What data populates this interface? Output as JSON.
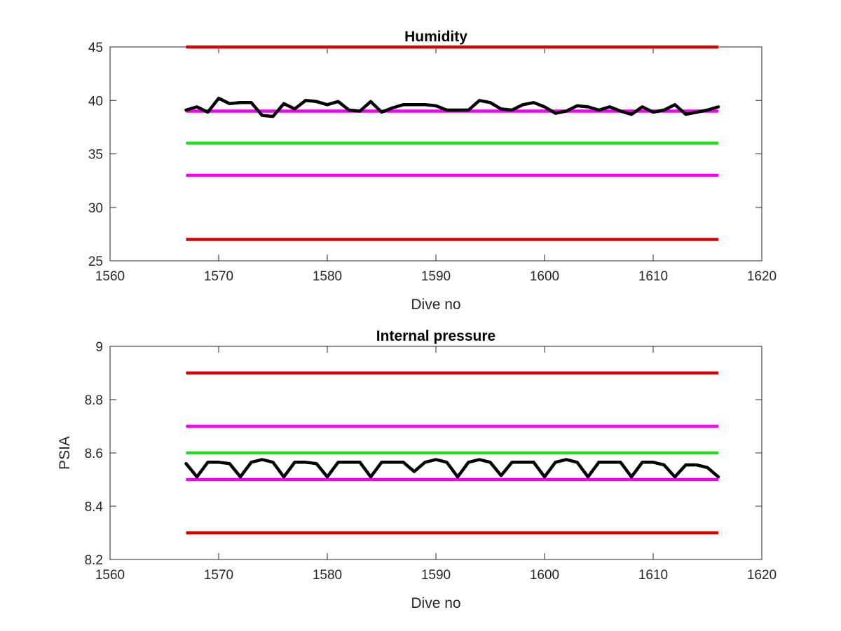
{
  "colors": {
    "red": "#d40000",
    "magenta": "#ee00ee",
    "green": "#22dd22",
    "data": "#000000"
  },
  "chart_data": [
    {
      "type": "line",
      "title": "Humidity",
      "xlabel": "Dive no",
      "ylabel": "",
      "xlim": [
        1560,
        1620
      ],
      "ylim": [
        25,
        45
      ],
      "xticks": [
        1560,
        1570,
        1580,
        1590,
        1600,
        1610,
        1620
      ],
      "yticks": [
        25,
        30,
        35,
        40,
        45
      ],
      "grid": false,
      "reference_lines": [
        {
          "y": 45,
          "x": [
            1567,
            1616
          ],
          "color": "red"
        },
        {
          "y": 39,
          "x": [
            1567,
            1616
          ],
          "color": "magenta"
        },
        {
          "y": 36,
          "x": [
            1567,
            1616
          ],
          "color": "green"
        },
        {
          "y": 33,
          "x": [
            1567,
            1616
          ],
          "color": "magenta"
        },
        {
          "y": 27,
          "x": [
            1567,
            1616
          ],
          "color": "red"
        }
      ],
      "series": [
        {
          "x": [
            1567,
            1568,
            1569,
            1570,
            1571,
            1572,
            1573,
            1574,
            1575,
            1576,
            1577,
            1578,
            1579,
            1580,
            1581,
            1582,
            1583,
            1584,
            1585,
            1586,
            1587,
            1588,
            1589,
            1590,
            1591,
            1592,
            1593,
            1594,
            1595,
            1596,
            1597,
            1598,
            1599,
            1600,
            1601,
            1602,
            1603,
            1604,
            1605,
            1606,
            1607,
            1608,
            1609,
            1610,
            1611,
            1612,
            1613,
            1614,
            1615,
            1616
          ],
          "y": [
            39.1,
            39.4,
            38.9,
            40.2,
            39.7,
            39.8,
            39.8,
            38.6,
            38.5,
            39.7,
            39.2,
            40.0,
            39.9,
            39.6,
            39.9,
            39.1,
            39.0,
            39.9,
            38.9,
            39.3,
            39.6,
            39.6,
            39.6,
            39.5,
            39.1,
            39.1,
            39.1,
            40.0,
            39.8,
            39.2,
            39.1,
            39.6,
            39.8,
            39.4,
            38.8,
            39.0,
            39.5,
            39.4,
            39.1,
            39.4,
            39.0,
            38.7,
            39.4,
            38.9,
            39.1,
            39.6,
            38.7,
            38.9,
            39.1,
            39.4
          ],
          "color": "data"
        }
      ]
    },
    {
      "type": "line",
      "title": "Internal pressure",
      "xlabel": "Dive no",
      "ylabel": "PSIA",
      "xlim": [
        1560,
        1620
      ],
      "ylim": [
        8.2,
        9.0
      ],
      "xticks": [
        1560,
        1570,
        1580,
        1590,
        1600,
        1610,
        1620
      ],
      "yticks": [
        8.2,
        8.4,
        8.6,
        8.8,
        9.0
      ],
      "ytick_labels": [
        "8.2",
        "8.4",
        "8.6",
        "8.8",
        "9"
      ],
      "grid": false,
      "reference_lines": [
        {
          "y": 8.9,
          "x": [
            1567,
            1616
          ],
          "color": "red"
        },
        {
          "y": 8.7,
          "x": [
            1567,
            1616
          ],
          "color": "magenta"
        },
        {
          "y": 8.6,
          "x": [
            1567,
            1616
          ],
          "color": "green"
        },
        {
          "y": 8.5,
          "x": [
            1567,
            1616
          ],
          "color": "magenta"
        },
        {
          "y": 8.3,
          "x": [
            1567,
            1616
          ],
          "color": "red"
        }
      ],
      "series": [
        {
          "x": [
            1567,
            1568,
            1569,
            1570,
            1571,
            1572,
            1573,
            1574,
            1575,
            1576,
            1577,
            1578,
            1579,
            1580,
            1581,
            1582,
            1583,
            1584,
            1585,
            1586,
            1587,
            1588,
            1589,
            1590,
            1591,
            1592,
            1593,
            1594,
            1595,
            1596,
            1597,
            1598,
            1599,
            1600,
            1601,
            1602,
            1603,
            1604,
            1605,
            1606,
            1607,
            1608,
            1609,
            1610,
            1611,
            1612,
            1613,
            1614,
            1615,
            1616
          ],
          "y": [
            8.56,
            8.51,
            8.565,
            8.565,
            8.56,
            8.51,
            8.565,
            8.575,
            8.565,
            8.51,
            8.565,
            8.565,
            8.56,
            8.51,
            8.565,
            8.565,
            8.565,
            8.51,
            8.565,
            8.565,
            8.565,
            8.53,
            8.565,
            8.575,
            8.565,
            8.51,
            8.565,
            8.575,
            8.565,
            8.515,
            8.565,
            8.565,
            8.565,
            8.51,
            8.565,
            8.575,
            8.565,
            8.51,
            8.565,
            8.565,
            8.565,
            8.51,
            8.565,
            8.565,
            8.555,
            8.51,
            8.555,
            8.555,
            8.545,
            8.51
          ],
          "color": "data"
        }
      ]
    }
  ]
}
